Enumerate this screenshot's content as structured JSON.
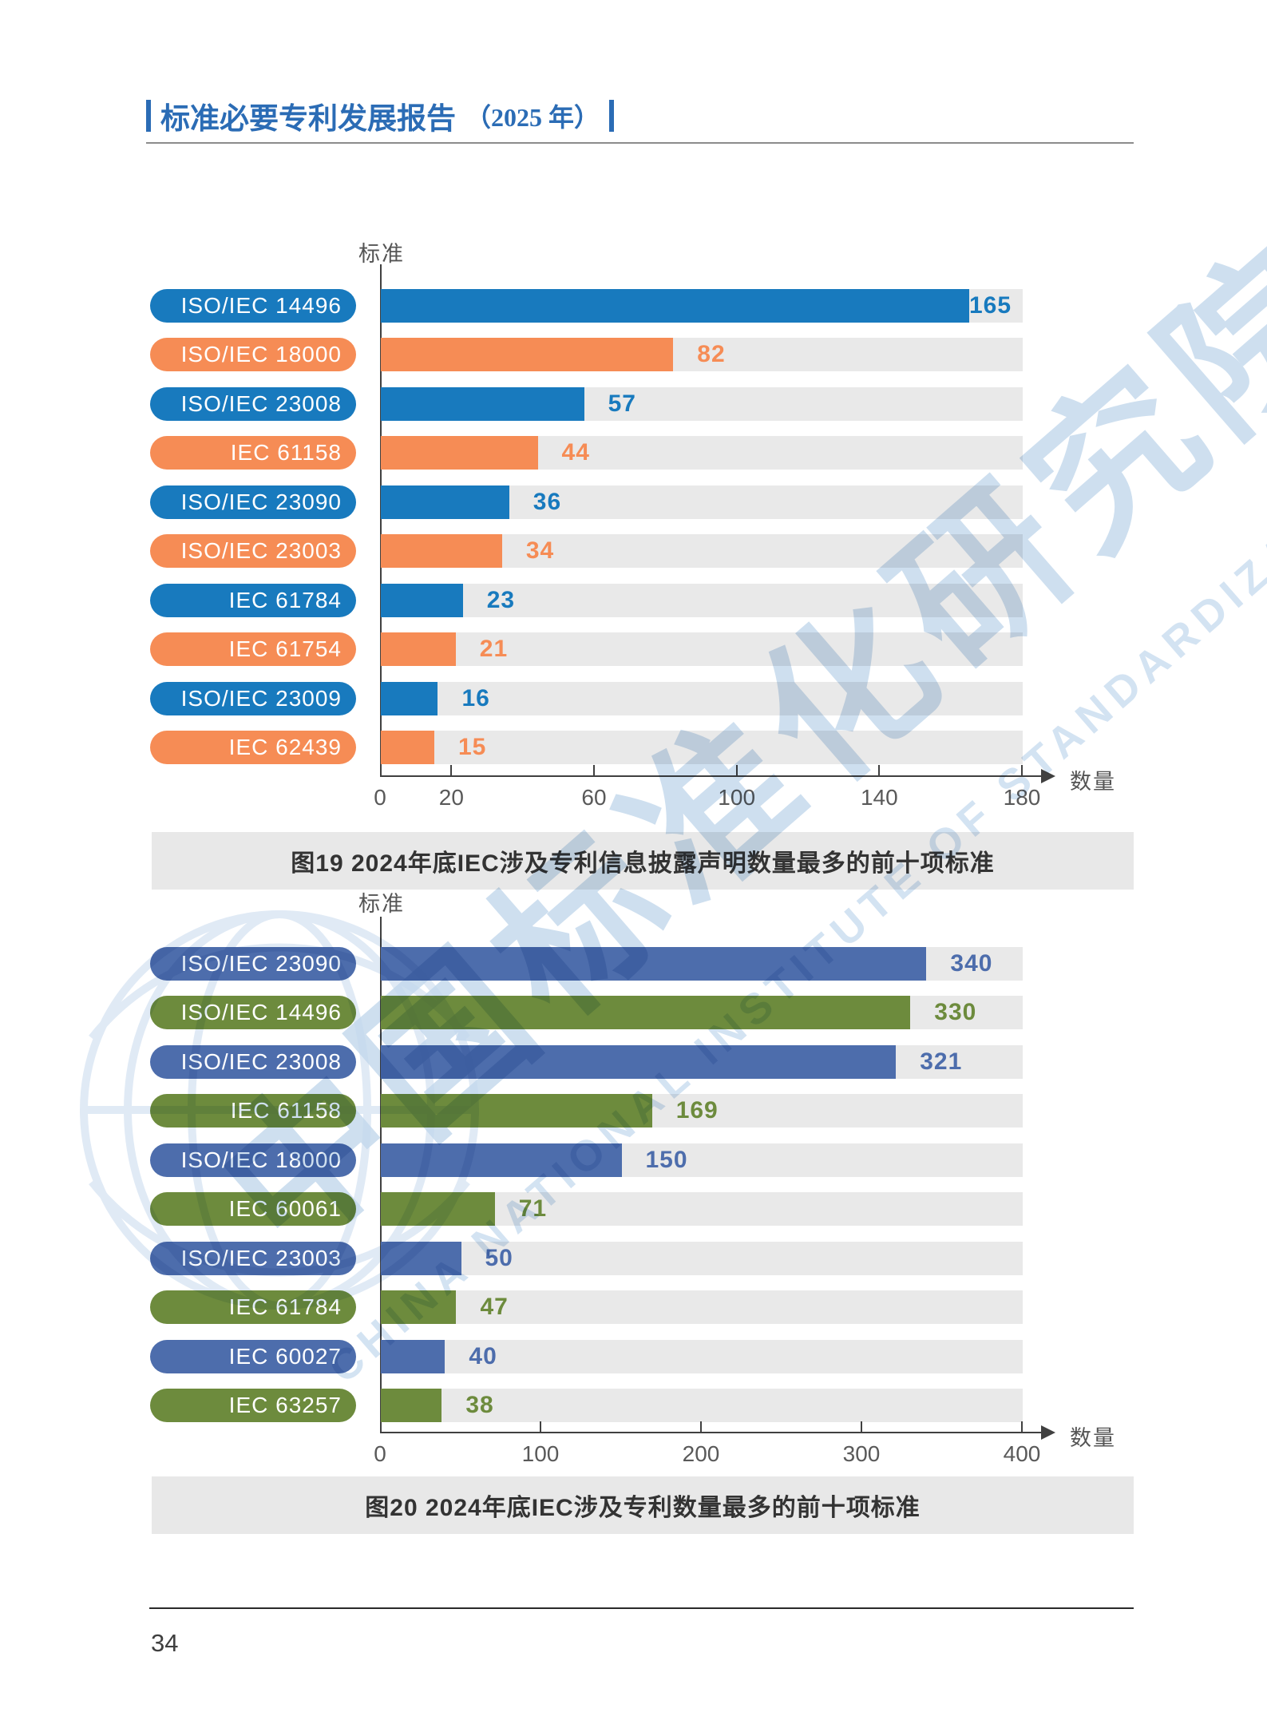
{
  "header": {
    "title": "标准必要专利发展报告",
    "year": "（2025 年）"
  },
  "footer": {
    "page_number": "34"
  },
  "watermark": {
    "cn": "中国标准化研究院",
    "en": "CHINA NATIONAL INSTITUTE OF STANDARDIZATION",
    "color": "#c2d8ec"
  },
  "chart_data": [
    {
      "type": "bar",
      "orientation": "horizontal",
      "title": "图19  2024年底IEC涉及专利信息披露声明数量最多的前十项标准",
      "ylabel": "标准",
      "xlabel": "数量",
      "categories": [
        "ISO/IEC 14496",
        "ISO/IEC 18000",
        "ISO/IEC 23008",
        "IEC 61158",
        "ISO/IEC 23090",
        "ISO/IEC 23003",
        "IEC 61784",
        "IEC 61754",
        "ISO/IEC 23009",
        "IEC 62439"
      ],
      "values": [
        165,
        82,
        57,
        44,
        36,
        34,
        23,
        21,
        16,
        15
      ],
      "xlim": [
        0,
        180
      ],
      "xticks": [
        0,
        20,
        60,
        100,
        140,
        180
      ],
      "bar_colors_alternating": [
        "#187abe",
        "#f68c55"
      ],
      "track_color": "#e9e9e9",
      "grid": false,
      "legend": "none"
    },
    {
      "type": "bar",
      "orientation": "horizontal",
      "title": "图20  2024年底IEC涉及专利数量最多的前十项标准",
      "ylabel": "标准",
      "xlabel": "数量",
      "categories": [
        "ISO/IEC 23090",
        "ISO/IEC 14496",
        "ISO/IEC 23008",
        "IEC 61158",
        "ISO/IEC 18000",
        "IEC 60061",
        "ISO/IEC 23003",
        "IEC 61784",
        "IEC 60027",
        "IEC 63257"
      ],
      "values": [
        340,
        330,
        321,
        169,
        150,
        71,
        50,
        47,
        40,
        38
      ],
      "xlim": [
        0,
        400
      ],
      "xticks": [
        0,
        100,
        200,
        300,
        400
      ],
      "bar_colors_alternating": [
        "#4d6dac",
        "#6d8b3d"
      ],
      "track_color": "#e9e9e9",
      "grid": false,
      "legend": "none"
    }
  ]
}
